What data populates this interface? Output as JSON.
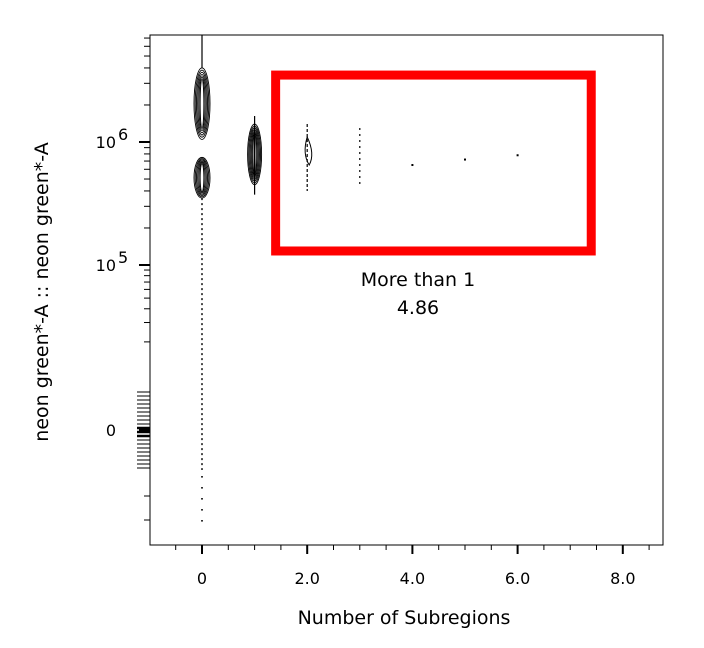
{
  "chart_data": {
    "type": "scatter",
    "subtype": "contour-plot-with-outliers",
    "xlabel": "Number of Subregions",
    "ylabel": "neon green*-A :: neon green*-A",
    "x_scale": "linear",
    "y_scale": "biexponential",
    "xlim": [
      -1,
      8.7
    ],
    "x_ticks": [
      {
        "value": 0,
        "label": "0"
      },
      {
        "value": 2,
        "label": "2.0"
      },
      {
        "value": 4,
        "label": "4.0"
      },
      {
        "value": 6,
        "label": "6.0"
      },
      {
        "value": 8,
        "label": "8.0"
      }
    ],
    "y_ticks": [
      {
        "value": 1000000,
        "label_base": "10",
        "label_exp": "6"
      },
      {
        "value": 100000,
        "label_base": "10",
        "label_exp": "5"
      },
      {
        "value": 0,
        "label_base": "0",
        "label_exp": ""
      }
    ],
    "populations": [
      {
        "x": 0,
        "y_min": 350000,
        "y_max": 4000000,
        "density": "high"
      },
      {
        "x": 1,
        "y_min": 450000,
        "y_max": 1400000,
        "density": "high"
      },
      {
        "x": 2,
        "y_min": 400000,
        "y_max": 1400000,
        "density": "low"
      },
      {
        "x": 3,
        "y_min": 450000,
        "y_max": 1300000,
        "density": "sparse"
      },
      {
        "x": 4,
        "y": 650000,
        "density": "single"
      },
      {
        "x": 5,
        "y": 720000,
        "density": "single"
      },
      {
        "x": 6,
        "y": 780000,
        "density": "single"
      }
    ],
    "gate": {
      "name": "More than 1",
      "percent": "4.86",
      "x_range": [
        1.4,
        7.4
      ],
      "y_range": [
        130000,
        3500000
      ],
      "color": "#ff0000"
    },
    "grid": false,
    "legend": "none"
  },
  "colors": {
    "gate": "#ff0000",
    "contour": "#000000"
  }
}
